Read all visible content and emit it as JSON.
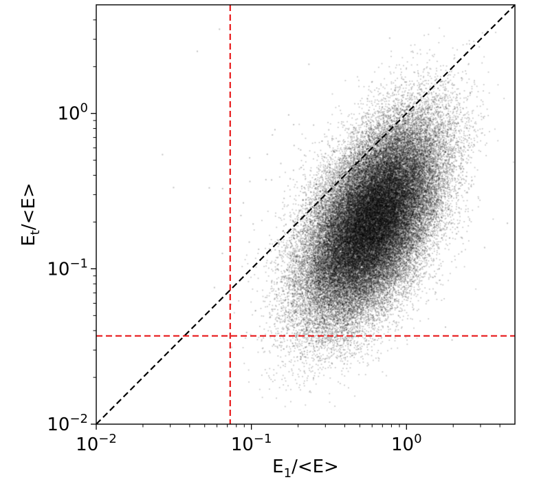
{
  "chart_data": {
    "type": "scatter",
    "xlabel": {
      "base": "E",
      "sub": "1",
      "rest": "/<E>"
    },
    "ylabel": {
      "base": "E",
      "sub": "t",
      "rest": "/<E>"
    },
    "x_scale": "log",
    "y_scale": "log",
    "xlim": [
      0.01,
      5.0
    ],
    "ylim": [
      0.01,
      5.0
    ],
    "x_ticks": [
      {
        "value": 0.01,
        "base": "10",
        "exp": "−2"
      },
      {
        "value": 0.1,
        "base": "10",
        "exp": "−1"
      },
      {
        "value": 1,
        "base": "10",
        "exp": "0"
      }
    ],
    "y_ticks": [
      {
        "value": 0.01,
        "base": "10",
        "exp": "−2"
      },
      {
        "value": 0.1,
        "base": "10",
        "exp": "−1"
      },
      {
        "value": 1,
        "base": "10",
        "exp": "0"
      }
    ],
    "grid": false,
    "point_color": "#000000",
    "point_density_description": "dense cloud centred near x≈0.6, y≈0.2, spanning x 0.2–3, y 0.01–2.5",
    "cloud": {
      "center": [
        0.6,
        0.2
      ],
      "log_sigma_x": 0.22,
      "log_sigma_y": 0.32,
      "correlation": 0.55,
      "n_points": 60000
    },
    "reference_lines": [
      {
        "kind": "diagonal",
        "from": [
          0.01,
          0.01
        ],
        "to": [
          5.0,
          5.0
        ],
        "color": "#000000",
        "style": "dashed"
      },
      {
        "kind": "vertical",
        "x": 0.073,
        "color": "#e8191b",
        "style": "dashed"
      },
      {
        "kind": "horizontal",
        "y": 0.037,
        "color": "#e8191b",
        "style": "dashed"
      }
    ]
  }
}
